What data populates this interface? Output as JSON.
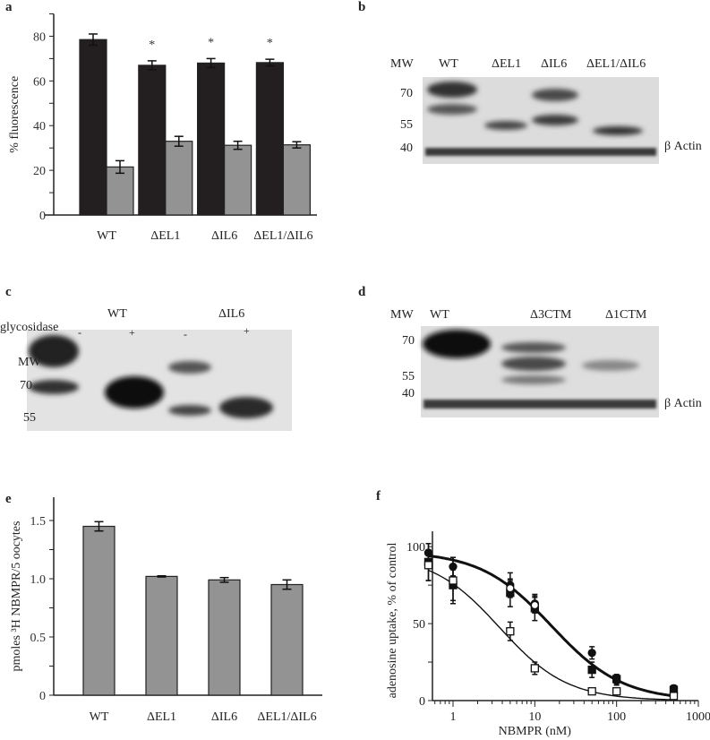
{
  "panels": {
    "a": {
      "label": "a"
    },
    "b": {
      "label": "b",
      "mw": "MW",
      "lanes": [
        "WT",
        "ΔEL1",
        "ΔIL6",
        "ΔEL1/ΔIL6"
      ],
      "markers": [
        "70",
        "55",
        "40"
      ],
      "actin": "β Actin"
    },
    "c": {
      "label": "c",
      "groups": [
        "WT",
        "ΔIL6"
      ],
      "treatment": "glycosidase",
      "signs": [
        "-",
        "+",
        "-",
        "+"
      ],
      "mw": "MW",
      "markers": [
        "70",
        "55"
      ]
    },
    "d": {
      "label": "d",
      "mw": "MW",
      "lanes": [
        "WT",
        "Δ3CTM",
        "Δ1CTM"
      ],
      "markers": [
        "70",
        "55",
        "40"
      ],
      "actin": "β Actin"
    },
    "e": {
      "label": "e"
    },
    "f": {
      "label": "f"
    }
  },
  "chart_data": [
    {
      "panel": "a",
      "type": "bar",
      "categories": [
        "WT",
        "ΔEL1",
        "ΔIL6",
        "ΔEL1/ΔIL6"
      ],
      "ylabel": "% fluorescence",
      "ylim": [
        0,
        90
      ],
      "yticks": [
        "0",
        "20",
        "40",
        "60",
        "80"
      ],
      "series": [
        {
          "color": "#231f20",
          "values": [
            78.5,
            67,
            68,
            68.2
          ],
          "errors": [
            2.5,
            2,
            2,
            1.5
          ]
        },
        {
          "color": "#939393",
          "values": [
            21.5,
            33,
            31.2,
            31.4
          ],
          "errors": [
            2.8,
            2.2,
            1.8,
            1.4
          ]
        }
      ],
      "annotations": [
        "",
        "*",
        "*",
        "*"
      ]
    },
    {
      "panel": "e",
      "type": "bar",
      "categories": [
        "WT",
        "ΔEL1",
        "ΔIL6",
        "ΔEL1/ΔIL6"
      ],
      "ylabel": "pmoles ³H NBMPR/5 oocytes",
      "ylim": [
        0,
        1.7
      ],
      "yticks": [
        "0",
        "0.5",
        "1.0",
        "1.5"
      ],
      "series": [
        {
          "color": "#939393",
          "values": [
            1.45,
            1.02,
            0.99,
            0.95
          ],
          "errors": [
            0.04,
            0.005,
            0.02,
            0.04
          ]
        }
      ]
    },
    {
      "panel": "f",
      "type": "scatter",
      "xlabel": "NBMPR (nM)",
      "ylabel": "adenosine uptake, % of control",
      "xscale": "log",
      "xlim": [
        0.56,
        1000
      ],
      "ylim": [
        0,
        110
      ],
      "xticks": [
        "1",
        "10",
        "100",
        "1000"
      ],
      "yticks": [
        "0",
        "50",
        "100"
      ],
      "x": [
        0.5,
        1,
        5,
        10,
        50,
        100,
        500
      ],
      "series": [
        {
          "marker": "filled-circle",
          "values": [
            96,
            87,
            75,
            63,
            31,
            13,
            8
          ],
          "errors": [
            6,
            6,
            8,
            6,
            4,
            3,
            2
          ]
        },
        {
          "marker": "filled-square",
          "values": [
            90,
            75,
            70,
            60,
            20,
            14,
            7
          ],
          "errors": [
            12,
            10,
            9,
            8,
            5,
            3,
            2
          ]
        },
        {
          "marker": "open-circle",
          "values": [
            null,
            null,
            73,
            62,
            null,
            null,
            null
          ],
          "errors": [
            0,
            0,
            5,
            5,
            0,
            0,
            0
          ]
        },
        {
          "marker": "open-square",
          "values": [
            88,
            78,
            45,
            21,
            6,
            6,
            3
          ],
          "errors": [
            10,
            15,
            6,
            4,
            1,
            1,
            1
          ]
        }
      ],
      "fits": [
        {
          "style": "thick",
          "top": 97,
          "ic50": 16,
          "hill": 1.0
        },
        {
          "style": "thin",
          "top": 95,
          "ic50": 3.7,
          "hill": 1.05
        }
      ]
    }
  ]
}
